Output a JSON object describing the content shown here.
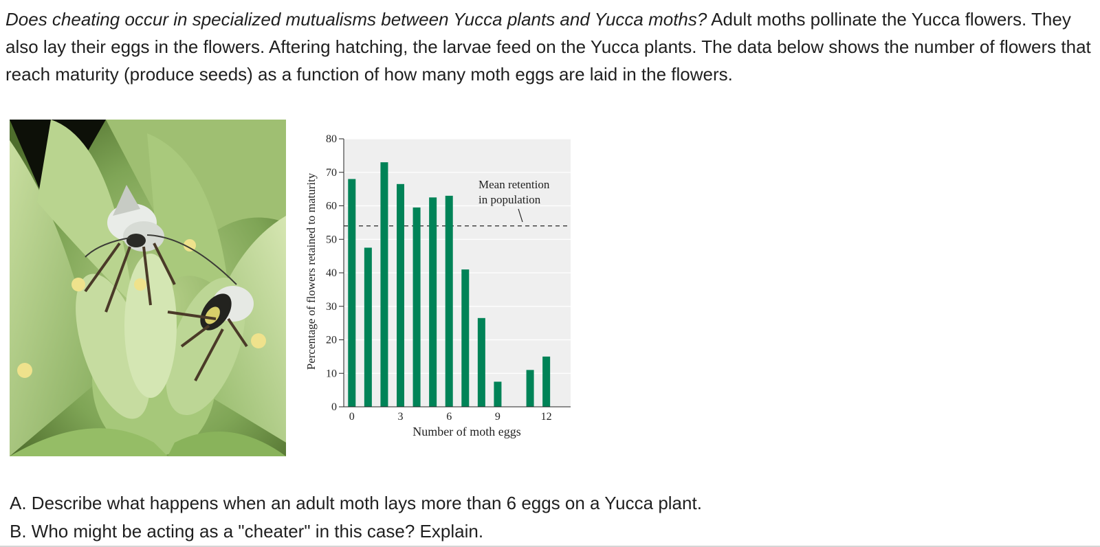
{
  "intro": {
    "question": "Does cheating occur in specialized mutualisms between Yucca plants and Yucca moths?",
    "text": "Adult moths pollinate the Yucca flowers. They also lay their eggs in the flowers. Aftering hatching, the larvae feed on the Yucca plants. The data below shows the number of flowers that reach maturity (produce seeds) as a function of how many moth eggs are laid in the flowers."
  },
  "photo": {
    "icon": "moth-on-yucca-flower-photo"
  },
  "chart_data": {
    "type": "bar",
    "x": [
      0,
      1,
      2,
      3,
      4,
      5,
      6,
      7,
      8,
      9,
      10,
      11,
      12
    ],
    "values": [
      68,
      47.5,
      73,
      66.5,
      59.5,
      62.5,
      63,
      41,
      26.5,
      7.5,
      null,
      11,
      15
    ],
    "xticks": [
      "0",
      "3",
      "6",
      "9",
      "12"
    ],
    "yticks": [
      "0",
      "10",
      "20",
      "30",
      "40",
      "50",
      "60",
      "70",
      "80"
    ],
    "xlabel": "Number of moth eggs",
    "ylabel": "Percentage of flowers retained to maturity",
    "ylim": [
      0,
      80
    ],
    "xlim": [
      -0.5,
      13.5
    ],
    "mean_line": {
      "value": 54,
      "label_line1": "Mean retention",
      "label_line2": "in population"
    },
    "bar_color": "#008357",
    "plot_background": "#efefef",
    "grid": true
  },
  "questions": [
    "A. Describe what happens when an adult moth lays more than 6 eggs on a Yucca plant.",
    "B. Who might be acting as a \"cheater\" in this case? Explain."
  ]
}
